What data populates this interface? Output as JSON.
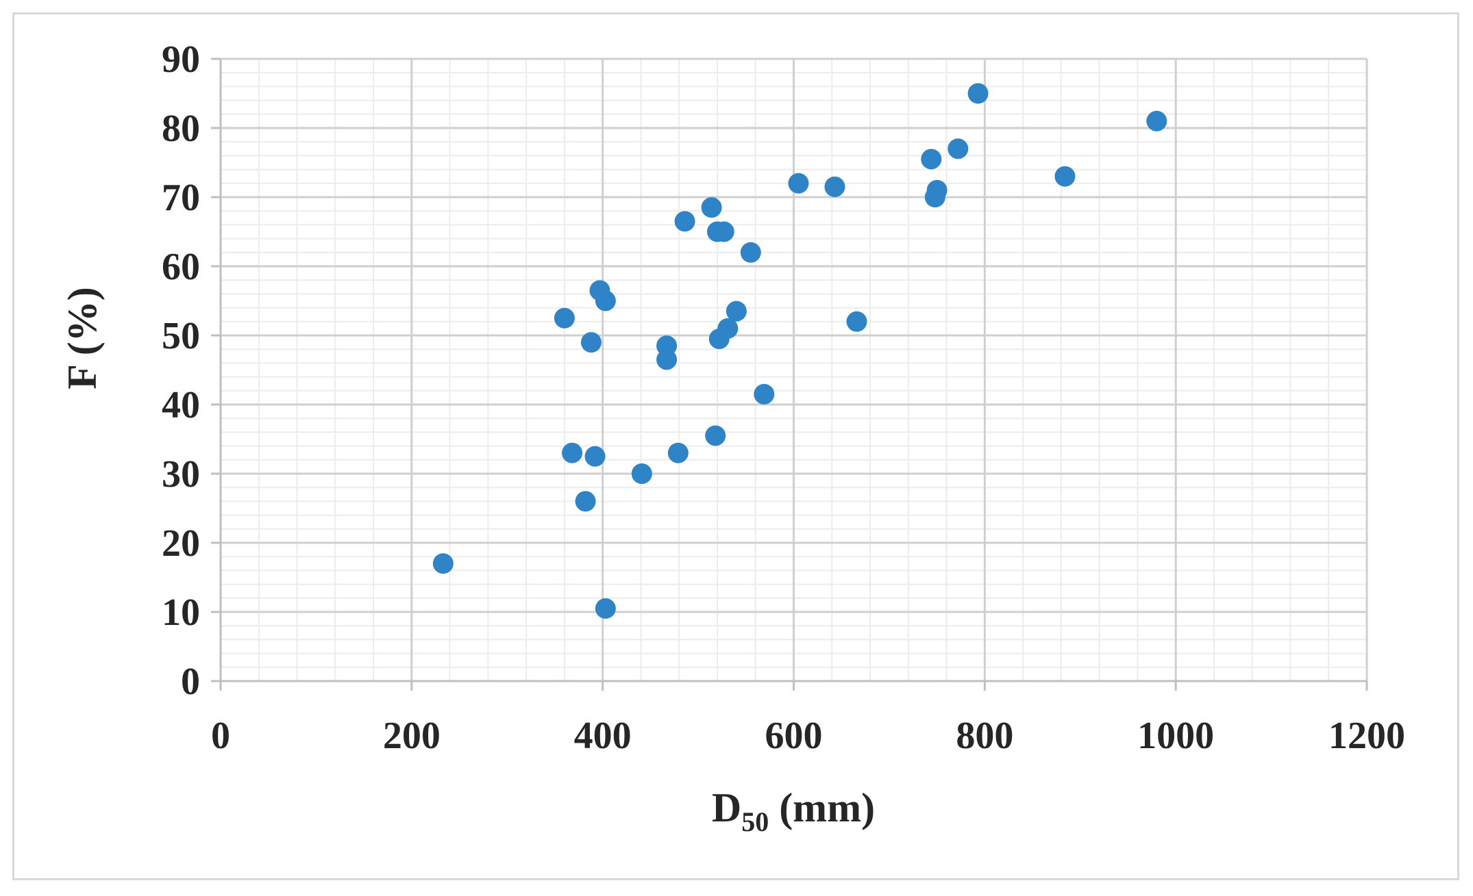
{
  "chart_data": {
    "type": "scatter",
    "title": "",
    "xlabel_main": "D",
    "xlabel_sub": "50",
    "xlabel_rest": " (mm)",
    "ylabel": "F (%)",
    "xlim": [
      0,
      1200
    ],
    "ylim": [
      0,
      90
    ],
    "x_ticks": [
      0,
      200,
      400,
      600,
      800,
      1000,
      1200
    ],
    "y_ticks": [
      0,
      10,
      20,
      30,
      40,
      50,
      60,
      70,
      80,
      90
    ],
    "x_minor_step": 40,
    "y_minor_step": 2,
    "grid": true,
    "legend": "none",
    "marker_color": "#2e84c6",
    "points": [
      {
        "x": 233,
        "y": 17
      },
      {
        "x": 360,
        "y": 52.5
      },
      {
        "x": 368,
        "y": 33
      },
      {
        "x": 382,
        "y": 26
      },
      {
        "x": 388,
        "y": 49
      },
      {
        "x": 392,
        "y": 32.5
      },
      {
        "x": 397,
        "y": 56.5
      },
      {
        "x": 403,
        "y": 55
      },
      {
        "x": 403,
        "y": 10.5
      },
      {
        "x": 441,
        "y": 30
      },
      {
        "x": 467,
        "y": 48.5
      },
      {
        "x": 467,
        "y": 46.5
      },
      {
        "x": 479,
        "y": 33
      },
      {
        "x": 486,
        "y": 66.5
      },
      {
        "x": 514,
        "y": 68.5
      },
      {
        "x": 518,
        "y": 35.5
      },
      {
        "x": 520,
        "y": 65
      },
      {
        "x": 522,
        "y": 49.5
      },
      {
        "x": 527,
        "y": 65
      },
      {
        "x": 531,
        "y": 51
      },
      {
        "x": 540,
        "y": 53.5
      },
      {
        "x": 555,
        "y": 62
      },
      {
        "x": 569,
        "y": 41.5
      },
      {
        "x": 605,
        "y": 72
      },
      {
        "x": 643,
        "y": 71.5
      },
      {
        "x": 666,
        "y": 52
      },
      {
        "x": 744,
        "y": 75.5
      },
      {
        "x": 748,
        "y": 70
      },
      {
        "x": 750,
        "y": 71
      },
      {
        "x": 772,
        "y": 77
      },
      {
        "x": 793,
        "y": 85
      },
      {
        "x": 884,
        "y": 73
      },
      {
        "x": 980,
        "y": 81
      }
    ]
  }
}
